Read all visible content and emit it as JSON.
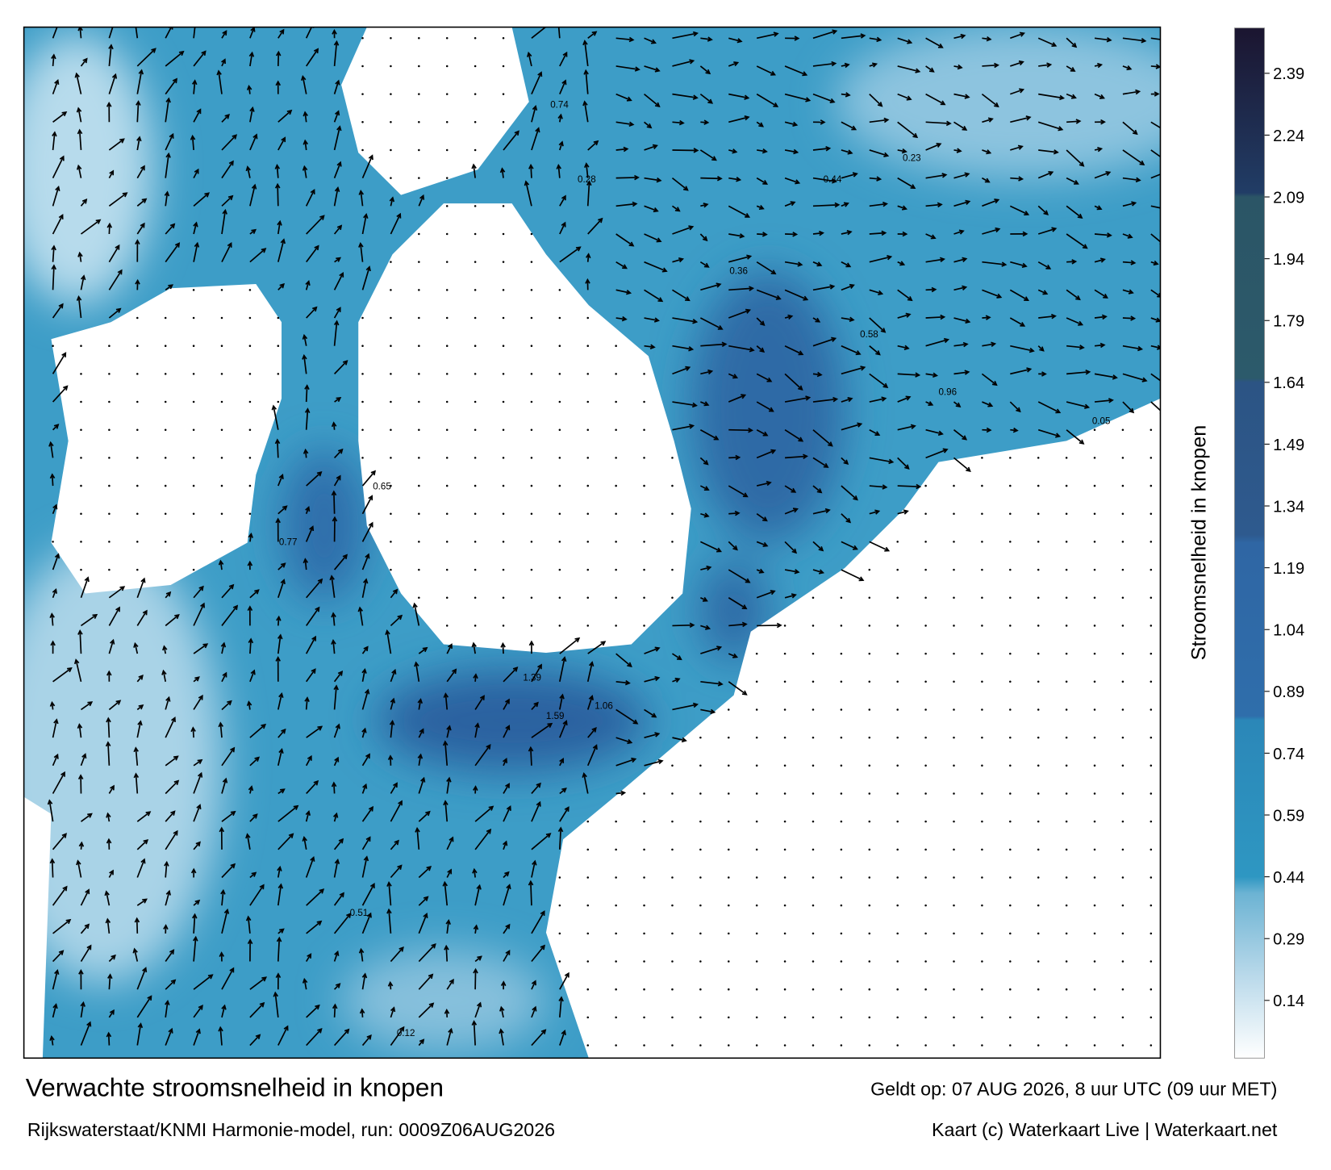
{
  "map": {
    "title": "Verwachte stroomsnelheid in knopen",
    "subtitle": "Rijkswaterstaat/KNMI Harmonie-model, run: 0009Z06AUG2026",
    "valid": "Geldt op: 07 AUG 2026, 8 uur UTC (09 uur MET)",
    "credits": "Kaart (c) Waterkaart Live | Waterkaart.net",
    "colorbar": {
      "label": "Stroomsnelheid in knopen",
      "lim": [
        0,
        2.5
      ],
      "ticks": [
        0.14,
        0.29,
        0.44,
        0.59,
        0.74,
        0.89,
        1.04,
        1.19,
        1.34,
        1.49,
        1.64,
        1.79,
        1.94,
        2.09,
        2.24,
        2.39
      ],
      "colors": [
        [
          0,
          "#ffffff"
        ],
        [
          0.2,
          "#b9d9ea"
        ],
        [
          0.4,
          "#6cb3d3"
        ],
        [
          0.44,
          "#2e97c2"
        ],
        [
          0.82,
          "#2b87b8"
        ],
        [
          0.83,
          "#2f6eab"
        ],
        [
          1.25,
          "#2f66a4"
        ],
        [
          1.27,
          "#2e5a8e"
        ],
        [
          1.64,
          "#2c5484"
        ],
        [
          1.65,
          "#2c5a6b"
        ],
        [
          2.09,
          "#2b5566"
        ],
        [
          2.1,
          "#213d66"
        ],
        [
          2.5,
          "#1b1530"
        ]
      ]
    },
    "speed_labels": [
      "1.59",
      "1.39",
      "1.06",
      "0.96",
      "0.77",
      "0.74",
      "0.58",
      "0.44",
      "0.36",
      "0.28",
      "0.65",
      "0.51",
      "0.23",
      "0.12",
      "0.05"
    ]
  }
}
